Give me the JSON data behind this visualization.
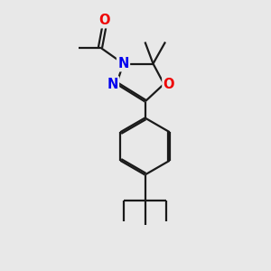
{
  "bg_color": "#e8e8e8",
  "bond_color": "#1a1a1a",
  "bond_lw": 1.6,
  "N_color": "#0000ee",
  "O_color": "#ee0000",
  "font_size_atom": 10.5,
  "fig_size": [
    3.0,
    3.0
  ],
  "dpi": 100,
  "xlim": [
    0,
    10
  ],
  "ylim": [
    0,
    10
  ]
}
